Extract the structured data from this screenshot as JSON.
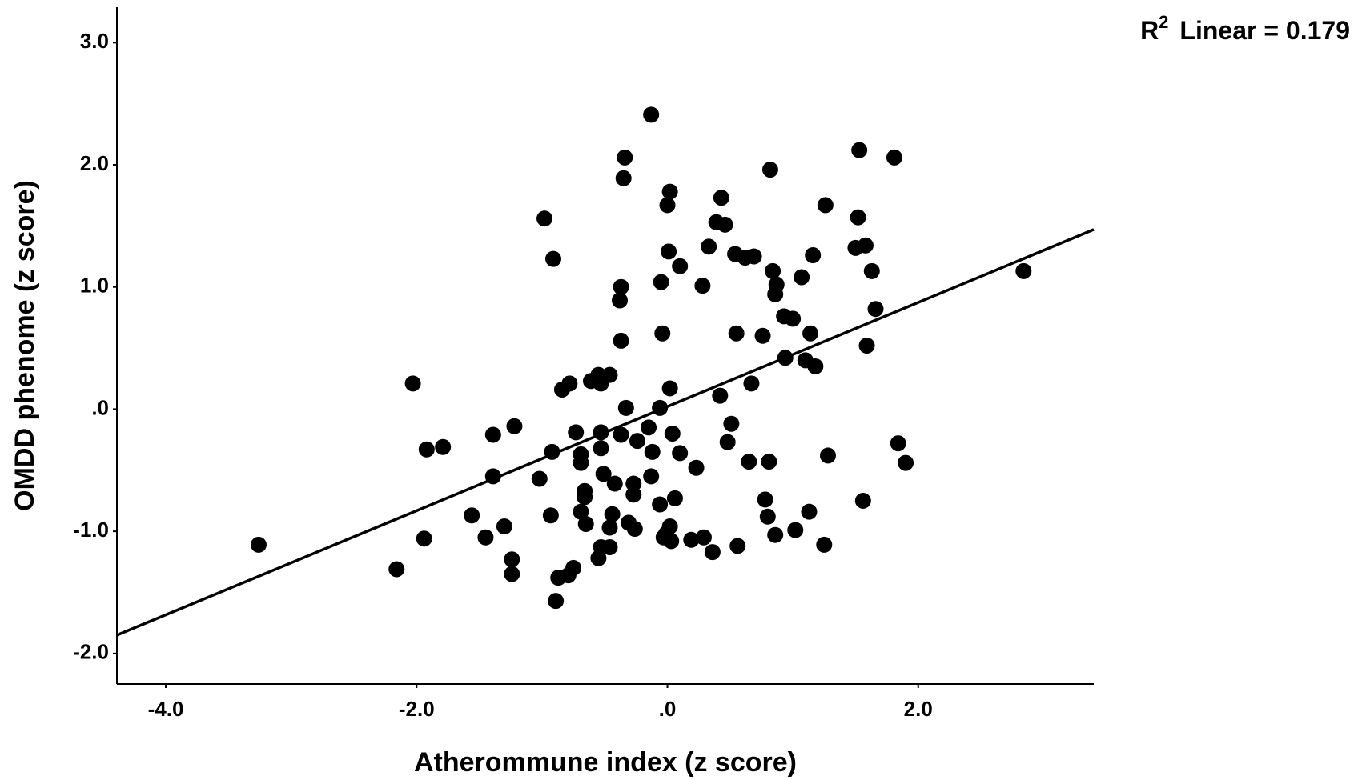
{
  "chart_data": {
    "type": "scatter",
    "x_label": "Atherommune index (z score)",
    "y_label": "OMDD phenome (z score)",
    "annotation": {
      "base": "R",
      "sup": "2",
      "text": "Linear = 0.179"
    },
    "color": "#000000",
    "line_color": "#000000",
    "x": [
      -0.13,
      -0.34,
      -0.35,
      -0.98,
      -0.91,
      0.02,
      0.0,
      0.43,
      0.82,
      1.53,
      1.81,
      1.26,
      1.52,
      0.39,
      0.46,
      0.33,
      0.01,
      0.1,
      0.54,
      0.62,
      0.69,
      1.16,
      1.5,
      1.58,
      1.63,
      0.84,
      0.87,
      0.86,
      1.07,
      -0.05,
      0.28,
      -0.37,
      -0.38,
      1.66,
      0.93,
      1.0,
      -0.04,
      0.55,
      0.76,
      1.14,
      -0.37,
      1.59,
      0.94,
      1.1,
      1.18,
      -2.03,
      -0.78,
      -0.84,
      -0.61,
      -0.55,
      -0.46,
      -0.53,
      0.02,
      0.67,
      0.42,
      -0.33,
      -0.06,
      0.51,
      -1.22,
      -1.39,
      -0.73,
      -0.53,
      -0.37,
      -0.15,
      0.04,
      -0.24,
      0.48,
      1.84,
      -1.79,
      -1.92,
      -0.92,
      -0.53,
      -0.12,
      0.1,
      -0.69,
      -0.69,
      1.28,
      0.65,
      0.81,
      1.9,
      0.23,
      -1.39,
      -1.02,
      -0.51,
      -0.13,
      -0.42,
      -0.27,
      -0.27,
      -0.66,
      -0.66,
      0.06,
      -0.06,
      0.78,
      1.56,
      -1.56,
      -0.93,
      -0.69,
      -0.44,
      0.8,
      1.13,
      -0.65,
      -0.46,
      -0.31,
      -0.26,
      -1.3,
      0.02,
      -0.01,
      1.02,
      -1.45,
      -1.94,
      -0.03,
      0.03,
      0.19,
      0.29,
      0.86,
      -3.26,
      -0.53,
      -0.46,
      0.56,
      1.25,
      0.36,
      -1.24,
      -0.55,
      -2.16,
      -0.75,
      -1.24,
      -0.79,
      -0.87,
      -0.89,
      2.84
    ],
    "values": [
      2.41,
      2.06,
      1.89,
      1.56,
      1.23,
      1.78,
      1.67,
      1.73,
      1.96,
      2.12,
      2.06,
      1.67,
      1.57,
      1.53,
      1.51,
      1.33,
      1.29,
      1.17,
      1.27,
      1.24,
      1.25,
      1.26,
      1.32,
      1.34,
      1.13,
      1.13,
      1.02,
      0.94,
      1.08,
      1.04,
      1.01,
      1.0,
      0.89,
      0.82,
      0.76,
      0.74,
      0.62,
      0.62,
      0.6,
      0.62,
      0.56,
      0.52,
      0.42,
      0.4,
      0.35,
      0.21,
      0.21,
      0.16,
      0.23,
      0.28,
      0.28,
      0.21,
      0.17,
      0.21,
      0.11,
      0.01,
      0.01,
      -0.12,
      -0.14,
      -0.21,
      -0.19,
      -0.19,
      -0.21,
      -0.15,
      -0.2,
      -0.26,
      -0.27,
      -0.28,
      -0.31,
      -0.33,
      -0.35,
      -0.32,
      -0.35,
      -0.36,
      -0.37,
      -0.44,
      -0.38,
      -0.43,
      -0.43,
      -0.44,
      -0.48,
      -0.55,
      -0.57,
      -0.53,
      -0.55,
      -0.61,
      -0.61,
      -0.7,
      -0.67,
      -0.72,
      -0.73,
      -0.78,
      -0.74,
      -0.75,
      -0.87,
      -0.87,
      -0.84,
      -0.86,
      -0.88,
      -0.84,
      -0.94,
      -0.97,
      -0.93,
      -0.98,
      -0.96,
      -0.96,
      -1.02,
      -0.99,
      -1.05,
      -1.06,
      -1.05,
      -1.08,
      -1.07,
      -1.05,
      -1.03,
      -1.11,
      -1.13,
      -1.13,
      -1.12,
      -1.11,
      -1.17,
      -1.23,
      -1.22,
      -1.31,
      -1.3,
      -1.35,
      -1.36,
      -1.38,
      -1.57,
      1.13
    ],
    "regression_line": {
      "x": [
        -4.39,
        3.4
      ],
      "y": [
        -1.85,
        1.47
      ]
    },
    "xlim": [
      -4.39,
      3.4
    ],
    "ylim": [
      -2.25,
      3.29
    ],
    "xticks": [
      {
        "value": -4,
        "label": "-4.0"
      },
      {
        "value": -2,
        "label": "-2.0"
      },
      {
        "value": 0,
        "label": ".0"
      },
      {
        "value": 2,
        "label": "2.0"
      }
    ],
    "yticks": [
      {
        "value": 3,
        "label": "3.0"
      },
      {
        "value": 2,
        "label": "2.0"
      },
      {
        "value": 1,
        "label": "1.0"
      },
      {
        "value": 0,
        "label": ".0"
      },
      {
        "value": -1,
        "label": "-1.0"
      },
      {
        "value": -2,
        "label": "-2.0"
      }
    ],
    "grid": false
  }
}
